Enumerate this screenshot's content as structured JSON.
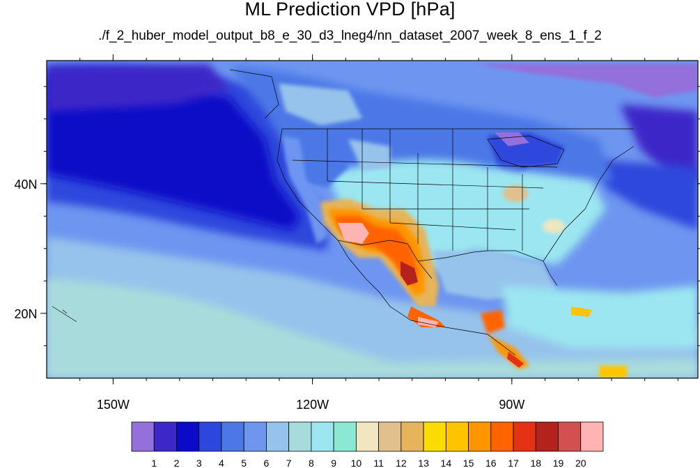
{
  "title": "ML Prediction VPD [hPa]",
  "subtitle": "./f_2_huber_model_output_b8_e_30_d3_lneg4/nn_dataset_2007_week_8_ens_1_f_2",
  "map": {
    "lon_range": [
      -160,
      -62
    ],
    "lat_range": [
      10,
      59
    ],
    "x_ticks": [
      {
        "value": -150,
        "label": "150W"
      },
      {
        "value": -120,
        "label": "120W"
      },
      {
        "value": -90,
        "label": "90W"
      }
    ],
    "y_ticks": [
      {
        "value": 40,
        "label": "40N"
      },
      {
        "value": 20,
        "label": "20N"
      }
    ]
  },
  "colorbar": {
    "unit": "hPa",
    "labels": [
      "1",
      "2",
      "3",
      "4",
      "5",
      "6",
      "7",
      "8",
      "9",
      "10",
      "11",
      "12",
      "13",
      "14",
      "15",
      "16",
      "17",
      "18",
      "19",
      "20"
    ],
    "colors": [
      "#9370db",
      "#3c28c8",
      "#0a0ac8",
      "#2d46dc",
      "#4b78e6",
      "#6e96f0",
      "#96c3eb",
      "#a8dcdc",
      "#9be6f0",
      "#8ce8d2",
      "#f0e6c0",
      "#e0c08c",
      "#e6b45a",
      "#fadc00",
      "#ffc400",
      "#ff9600",
      "#ff6400",
      "#e63214",
      "#b4221e",
      "#d25050",
      "#ffb4b4"
    ]
  }
}
